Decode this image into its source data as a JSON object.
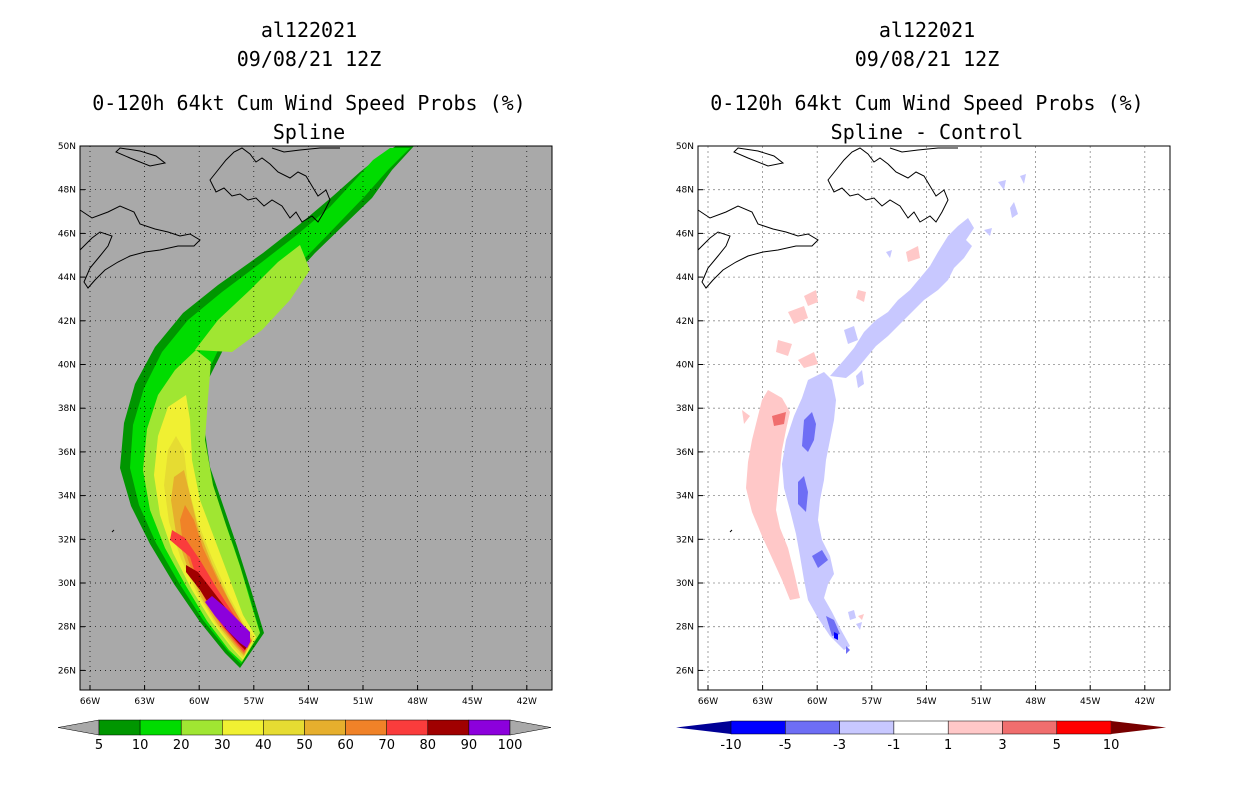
{
  "left": {
    "title_id": "al122021",
    "title_date": "09/08/21 12Z",
    "title_product": "0-120h 64kt Cum Wind Speed Probs (%)",
    "title_sub": "Spline",
    "background_color": "#a9a9a9",
    "colorbar": {
      "labels": [
        "5",
        "10",
        "20",
        "30",
        "40",
        "50",
        "60",
        "70",
        "80",
        "90",
        "100"
      ],
      "colors": [
        "#009600",
        "#00dc00",
        "#a0e632",
        "#f0f032",
        "#e6dc32",
        "#e6af2d",
        "#f08228",
        "#fa3c3c",
        "#a00000",
        "#8c00dc"
      ],
      "arrow_color": "#a9a9a9"
    }
  },
  "right": {
    "title_id": "al122021",
    "title_date": "09/08/21 12Z",
    "title_product": "0-120h 64kt Cum Wind Speed Probs (%)",
    "title_sub": "Spline - Control",
    "background_color": "#ffffff",
    "colorbar": {
      "labels": [
        "-10",
        "-5",
        "-3",
        "-1",
        "1",
        "3",
        "5",
        "10"
      ],
      "colors": [
        "#0000ff",
        "#6e6ef5",
        "#c8c8ff",
        "#ffffff",
        "#ffc8c8",
        "#f06e6e",
        "#ff0000"
      ],
      "low_arrow_color": "#000096",
      "high_arrow_color": "#780000"
    }
  },
  "axes": {
    "lon_labels": [
      "66W",
      "63W",
      "60W",
      "57W",
      "54W",
      "51W",
      "48W",
      "45W",
      "42W"
    ],
    "lat_labels": [
      "50N",
      "48N",
      "46N",
      "44N",
      "42N",
      "40N",
      "38N",
      "36N",
      "34N",
      "32N",
      "30N",
      "28N",
      "26N"
    ]
  }
}
